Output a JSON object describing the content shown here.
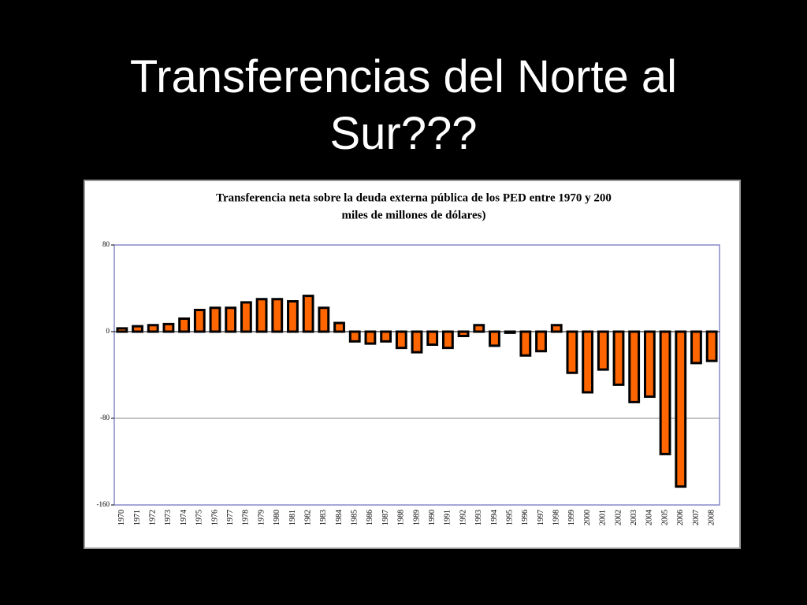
{
  "slide_title": "Transferencias del Norte al Sur???",
  "chart_data": {
    "type": "bar",
    "title": "Transferencia neta sobre la deuda externa pública de los PED entre 1970 y 200",
    "subtitle": "miles de millones de dólares)",
    "categories": [
      "1970",
      "1971",
      "1972",
      "1973",
      "1974",
      "1975",
      "1976",
      "1977",
      "1978",
      "1979",
      "1980",
      "1981",
      "1982",
      "1983",
      "1984",
      "1985",
      "1986",
      "1987",
      "1988",
      "1989",
      "1990",
      "1991",
      "1992",
      "1993",
      "1994",
      "1995",
      "1996",
      "1997",
      "1998",
      "1999",
      "2000",
      "2001",
      "2002",
      "2003",
      "2004",
      "2005",
      "2006",
      "2007",
      "2008"
    ],
    "values": [
      3,
      5,
      6,
      7,
      12,
      20,
      22,
      22,
      27,
      30,
      30,
      28,
      33,
      22,
      8,
      -9,
      -11,
      -9,
      -15,
      -19,
      -12,
      -15,
      -4,
      6,
      -13,
      -1,
      -22,
      -18,
      6,
      -38,
      -56,
      -35,
      -49,
      -65,
      -60,
      -113,
      -143,
      -29,
      -27
    ],
    "color": "#ff6600",
    "ylim": [
      -160,
      80
    ],
    "yticks": [
      80,
      0,
      -80,
      -160
    ],
    "grid": true
  }
}
